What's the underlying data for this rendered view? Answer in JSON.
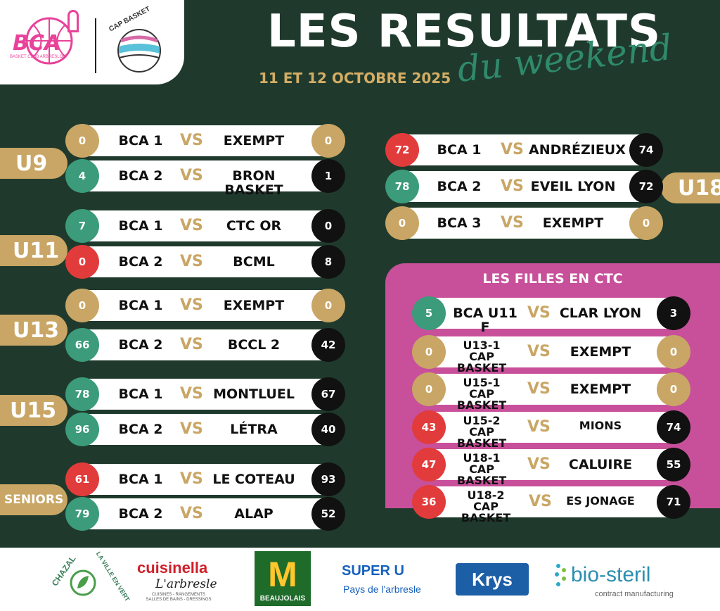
{
  "header": {
    "logo_bca": "BCA",
    "logo_bca_sub": "BASKET CLUB ARBRESLOIS",
    "logo_cap": "CAP BASKET",
    "title": "LES RESULTATS",
    "subtitle": "du weekend",
    "date": "11 ET 12 OCTOBRE 2025"
  },
  "categories": {
    "u9": "U9",
    "u11": "U11",
    "u13": "U13",
    "u15": "U15",
    "seniors": "SENIORS",
    "u18": "U18"
  },
  "vs": "VS",
  "matches": [
    {
      "home": "BCA 1",
      "away": "EXEMPT",
      "score_home": "0",
      "score_away": "0"
    },
    {
      "home": "BCA 2",
      "away": "BRON BASKET",
      "score_home": "4",
      "score_away": "1"
    },
    {
      "home": "BCA 1",
      "away": "CTC OR",
      "score_home": "7",
      "score_away": "0"
    },
    {
      "home": "BCA 2",
      "away": "BCML",
      "score_home": "0",
      "score_away": "8"
    },
    {
      "home": "BCA 1",
      "away": "EXEMPT",
      "score_home": "0",
      "score_away": "0"
    },
    {
      "home": "BCA 2",
      "away": "BCCL 2",
      "score_home": "66",
      "score_away": "42"
    },
    {
      "home": "BCA 1",
      "away": "MONTLUEL",
      "score_home": "78",
      "score_away": "67"
    },
    {
      "home": "BCA 2",
      "away": "LÉTRA",
      "score_home": "96",
      "score_away": "40"
    },
    {
      "home": "BCA 1",
      "away": "LE COTEAU",
      "score_home": "61",
      "score_away": "93"
    },
    {
      "home": "BCA 2",
      "away": "ALAP",
      "score_home": "79",
      "score_away": "52"
    }
  ],
  "u18_matches": [
    {
      "home": "BCA 1",
      "away": "ANDRÉZIEUX",
      "score_home": "72",
      "score_away": "74"
    },
    {
      "home": "BCA 2",
      "away": "EVEIL LYON",
      "score_home": "78",
      "score_away": "72"
    },
    {
      "home": "BCA 3",
      "away": "EXEMPT",
      "score_home": "0",
      "score_away": "0"
    }
  ],
  "ctc": {
    "title": "LES FILLES EN CTC",
    "matches": [
      {
        "home_line1": "BCA U11 F",
        "home_line2": "",
        "away": "CLAR LYON",
        "score_home": "5",
        "score_away": "3"
      },
      {
        "home_line1": "U13-1",
        "home_line2": "CAP BASKET",
        "away": "EXEMPT",
        "score_home": "0",
        "score_away": "0"
      },
      {
        "home_line1": "U15-1",
        "home_line2": "CAP BASKET",
        "away": "EXEMPT",
        "score_home": "0",
        "score_away": "0"
      },
      {
        "home_line1": "U15-2",
        "home_line2": "CAP BASKET",
        "away": "MIONS",
        "score_home": "43",
        "score_away": "74"
      },
      {
        "home_line1": "U18-1",
        "home_line2": "CAP BASKET",
        "away": "CALUIRE",
        "score_home": "47",
        "score_away": "55"
      },
      {
        "home_line1": "U18-2",
        "home_line2": "CAP BASKET",
        "away": "ES JONAGE",
        "score_home": "36",
        "score_away": "71"
      }
    ]
  },
  "sponsors": {
    "chazal": "CHAZAL",
    "chazal_tag": "LA VILLE EN VERT",
    "cuisinella": "cuisinella",
    "cuisinella_town": "L'arbresle",
    "cuisinella_tag": "CUISINES - RANGEMENTS SALLES DE BAINS - DRESSINGS",
    "mcdo": "M",
    "mcdo_tag": "BEAUJOLAIS",
    "superu": "SUPER U",
    "superu_tag": "Pays de l'arbresle",
    "krys": "Krys",
    "biosteril": "bio-steril",
    "biosteril_tag": "contract manufacturing"
  },
  "colors": {
    "background": "#1f3a2d",
    "gold": "#c9a665",
    "green": "#3b9b7a",
    "red": "#e23b3b",
    "black": "#111111",
    "ctc_pink": "#c8509a"
  }
}
